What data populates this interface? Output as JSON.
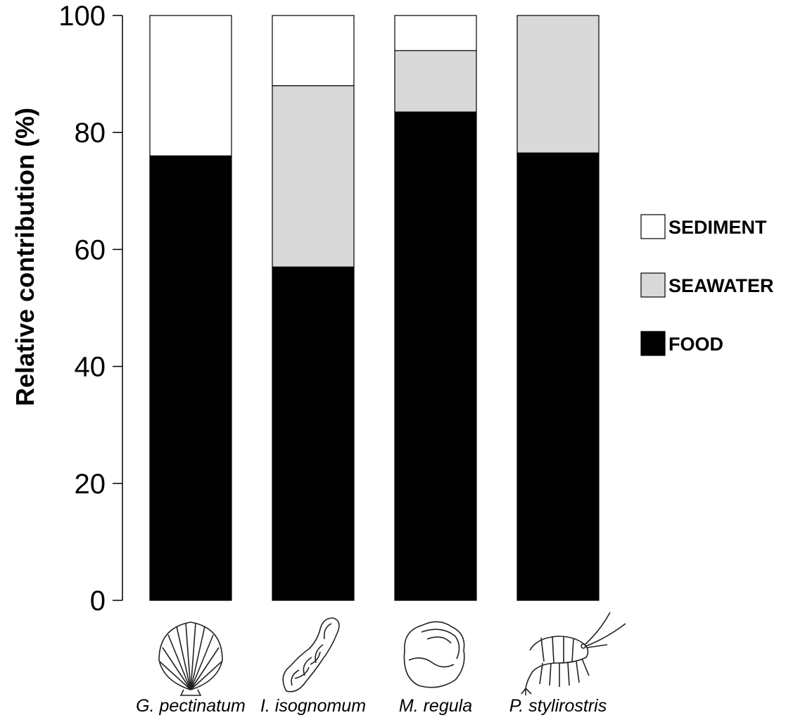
{
  "chart_data": {
    "type": "bar",
    "stacked": true,
    "title": "",
    "xlabel": "",
    "ylabel": "Relative contribution (%)",
    "ylim": [
      0,
      100
    ],
    "yticks": [
      "0",
      "20",
      "40",
      "60",
      "80",
      "100"
    ],
    "categories": [
      "G. pectinatum",
      "I. isognomum",
      "M. regula",
      "P. stylirostris"
    ],
    "series": [
      {
        "name": "FOOD",
        "color": "#000000",
        "values": [
          76,
          57,
          83.5,
          76.5
        ]
      },
      {
        "name": "SEAWATER",
        "color": "#d9d9d9",
        "values": [
          0,
          31,
          10.5,
          23.5
        ]
      },
      {
        "name": "SEDIMENT",
        "color": "#ffffff",
        "values": [
          24,
          12,
          6,
          0
        ]
      }
    ],
    "legend_order": [
      "SEDIMENT",
      "SEAWATER",
      "FOOD"
    ],
    "legend_position": "right",
    "grid": false,
    "category_icons": [
      "scallop-icon",
      "oyster-icon",
      "clam-icon",
      "shrimp-icon"
    ]
  }
}
